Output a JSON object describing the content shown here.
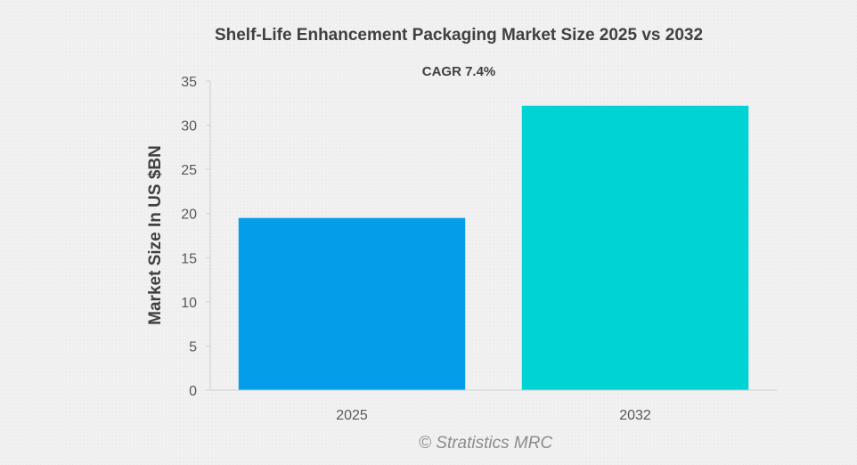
{
  "chart_data": {
    "type": "bar",
    "title": "Shelf-Life Enhancement Packaging Market Size 2025 vs 2032",
    "subtitle": "CAGR 7.4%",
    "xlabel": "",
    "ylabel": "Market Size In US $BN",
    "categories": [
      "2025",
      "2032"
    ],
    "values": [
      19.5,
      32.2
    ],
    "colors": [
      "#039de9",
      "#00d3d3"
    ],
    "ylim": [
      0,
      35
    ],
    "yticks": [
      0,
      5,
      10,
      15,
      20,
      25,
      30,
      35
    ],
    "grid": false,
    "legend": "none"
  },
  "watermark": "© Stratistics MRC"
}
